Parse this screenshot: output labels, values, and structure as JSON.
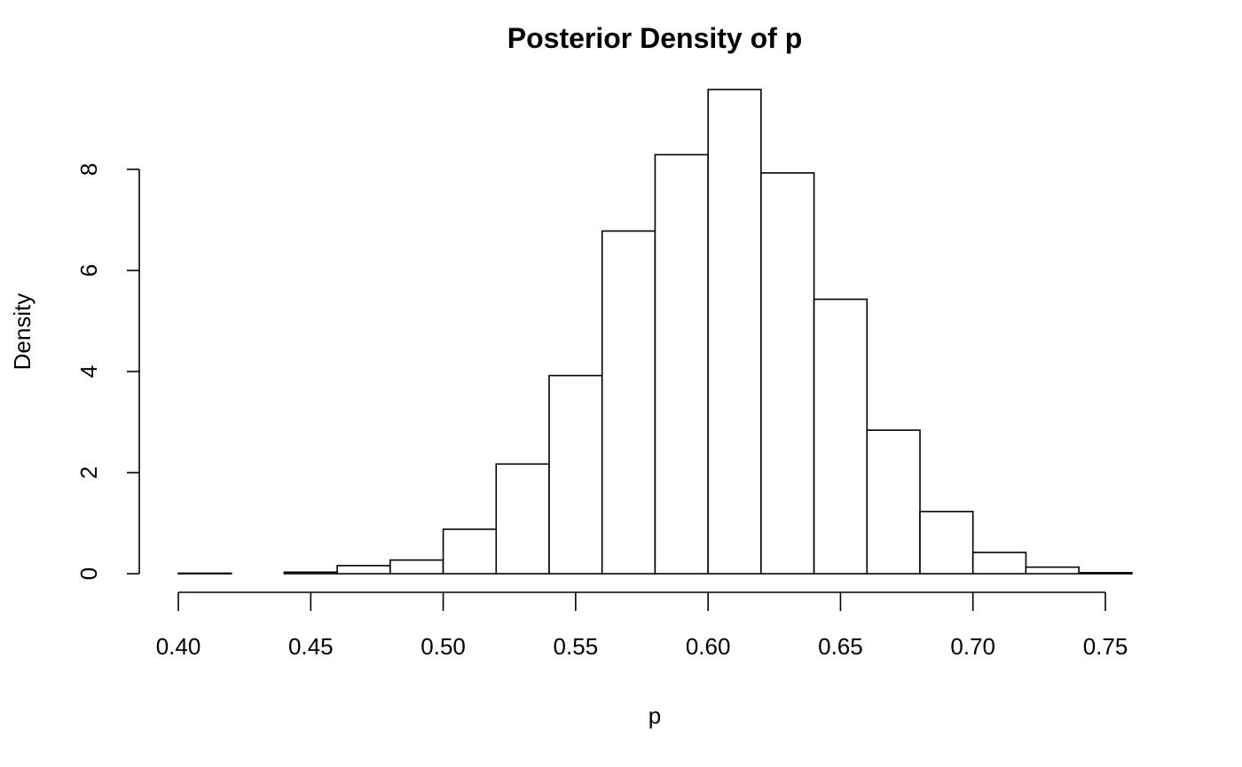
{
  "chart_data": {
    "type": "bar",
    "title": "Posterior Density of p",
    "xlabel": "p",
    "ylabel": "Density",
    "xlim": [
      0.4,
      0.76
    ],
    "ylim": [
      0,
      9.6
    ],
    "grid": false,
    "xticks": [
      0.4,
      0.45,
      0.5,
      0.55,
      0.6,
      0.65,
      0.7,
      0.75
    ],
    "xtick_labels": [
      "0.40",
      "0.45",
      "0.50",
      "0.55",
      "0.60",
      "0.65",
      "0.70",
      "0.75"
    ],
    "yticks": [
      0,
      2,
      4,
      6,
      8
    ],
    "ytick_labels": [
      "0",
      "2",
      "4",
      "6",
      "8"
    ],
    "bin_edges": [
      0.4,
      0.42,
      0.44,
      0.46,
      0.48,
      0.5,
      0.52,
      0.54,
      0.56,
      0.58,
      0.6,
      0.62,
      0.64,
      0.66,
      0.68,
      0.7,
      0.72,
      0.74,
      0.76
    ],
    "values": [
      0.01,
      0.0,
      0.03,
      0.16,
      0.27,
      0.88,
      2.17,
      3.92,
      6.78,
      8.29,
      9.58,
      7.93,
      5.43,
      2.84,
      1.23,
      0.42,
      0.13,
      0.02
    ]
  }
}
